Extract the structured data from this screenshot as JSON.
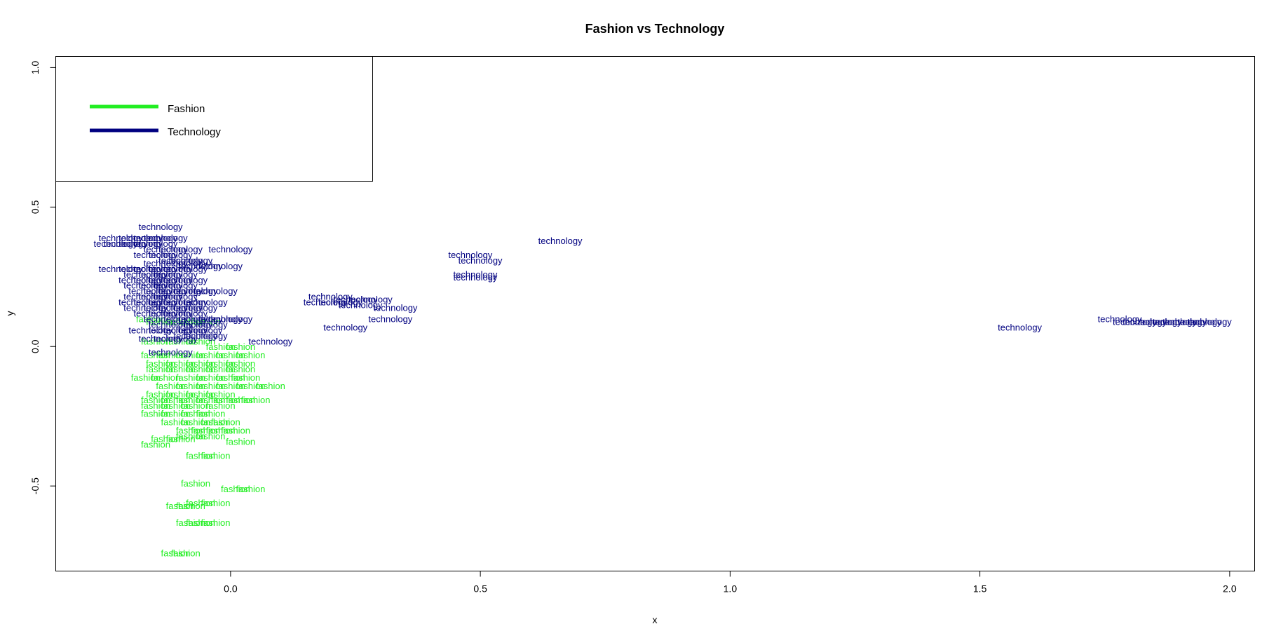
{
  "chart_data": {
    "type": "scatter",
    "title": "Fashion vs Technology",
    "xlabel": "x",
    "ylabel": "y",
    "xlim": [
      -0.35,
      2.05
    ],
    "ylim": [
      -0.805,
      1.04
    ],
    "x_ticks": [
      {
        "value": 0.0,
        "label": "0.0"
      },
      {
        "value": 0.5,
        "label": "0.5"
      },
      {
        "value": 1.0,
        "label": "1.0"
      },
      {
        "value": 1.5,
        "label": "1.5"
      },
      {
        "value": 2.0,
        "label": "2.0"
      }
    ],
    "y_ticks": [
      {
        "value": -0.5,
        "label": "-0.5"
      },
      {
        "value": 0.0,
        "label": "0.0"
      },
      {
        "value": 0.5,
        "label": "0.5"
      },
      {
        "value": 1.0,
        "label": "1.0"
      }
    ],
    "grid": false,
    "legend": {
      "position": "top-left",
      "entries": [
        {
          "label": "Fashion",
          "color": "#22ee22"
        },
        {
          "label": "Technology",
          "color": "#000080"
        }
      ]
    },
    "series": [
      {
        "name": "Fashion",
        "point_label": "fashion",
        "color": "#22ee22",
        "points": [
          [
            -0.16,
            0.1
          ],
          [
            -0.14,
            0.09
          ],
          [
            -0.1,
            0.09
          ],
          [
            -0.08,
            0.09
          ],
          [
            -0.05,
            0.09
          ],
          [
            -0.15,
            0.02
          ],
          [
            -0.1,
            0.02
          ],
          [
            -0.06,
            0.02
          ],
          [
            -0.02,
            0.0
          ],
          [
            0.02,
            0.0
          ],
          [
            -0.15,
            -0.03
          ],
          [
            -0.12,
            -0.03
          ],
          [
            -0.08,
            -0.03
          ],
          [
            -0.04,
            -0.03
          ],
          [
            0.0,
            -0.03
          ],
          [
            0.04,
            -0.03
          ],
          [
            -0.14,
            -0.06
          ],
          [
            -0.1,
            -0.06
          ],
          [
            -0.06,
            -0.06
          ],
          [
            -0.02,
            -0.06
          ],
          [
            0.02,
            -0.06
          ],
          [
            -0.14,
            -0.08
          ],
          [
            -0.1,
            -0.08
          ],
          [
            -0.06,
            -0.08
          ],
          [
            -0.02,
            -0.08
          ],
          [
            0.02,
            -0.08
          ],
          [
            -0.17,
            -0.11
          ],
          [
            -0.13,
            -0.11
          ],
          [
            -0.08,
            -0.11
          ],
          [
            -0.04,
            -0.11
          ],
          [
            0.0,
            -0.11
          ],
          [
            0.03,
            -0.11
          ],
          [
            -0.12,
            -0.14
          ],
          [
            -0.08,
            -0.14
          ],
          [
            -0.04,
            -0.14
          ],
          [
            0.0,
            -0.14
          ],
          [
            0.04,
            -0.14
          ],
          [
            0.08,
            -0.14
          ],
          [
            -0.14,
            -0.17
          ],
          [
            -0.1,
            -0.17
          ],
          [
            -0.06,
            -0.17
          ],
          [
            -0.02,
            -0.17
          ],
          [
            -0.15,
            -0.19
          ],
          [
            -0.11,
            -0.19
          ],
          [
            -0.08,
            -0.19
          ],
          [
            -0.04,
            -0.19
          ],
          [
            -0.01,
            -0.19
          ],
          [
            0.02,
            -0.19
          ],
          [
            0.05,
            -0.19
          ],
          [
            -0.15,
            -0.21
          ],
          [
            -0.11,
            -0.21
          ],
          [
            -0.07,
            -0.21
          ],
          [
            -0.02,
            -0.21
          ],
          [
            -0.15,
            -0.24
          ],
          [
            -0.11,
            -0.24
          ],
          [
            -0.07,
            -0.24
          ],
          [
            -0.04,
            -0.24
          ],
          [
            -0.11,
            -0.27
          ],
          [
            -0.07,
            -0.27
          ],
          [
            -0.03,
            -0.27
          ],
          [
            -0.01,
            -0.27
          ],
          [
            -0.08,
            -0.3
          ],
          [
            -0.05,
            -0.3
          ],
          [
            -0.02,
            -0.3
          ],
          [
            0.01,
            -0.3
          ],
          [
            -0.08,
            -0.32
          ],
          [
            -0.04,
            -0.32
          ],
          [
            -0.13,
            -0.33
          ],
          [
            -0.1,
            -0.33
          ],
          [
            -0.15,
            -0.35
          ],
          [
            0.02,
            -0.34
          ],
          [
            -0.06,
            -0.39
          ],
          [
            -0.03,
            -0.39
          ],
          [
            -0.07,
            -0.49
          ],
          [
            0.01,
            -0.51
          ],
          [
            0.04,
            -0.51
          ],
          [
            -0.06,
            -0.56
          ],
          [
            -0.03,
            -0.56
          ],
          [
            -0.08,
            -0.57
          ],
          [
            -0.1,
            -0.57
          ],
          [
            -0.08,
            -0.63
          ],
          [
            -0.06,
            -0.63
          ],
          [
            -0.03,
            -0.63
          ],
          [
            -0.11,
            -0.74
          ],
          [
            -0.09,
            -0.74
          ]
        ]
      },
      {
        "name": "Technology",
        "point_label": "technology",
        "color": "#000080",
        "points": [
          [
            -0.14,
            0.43
          ],
          [
            -0.22,
            0.39
          ],
          [
            -0.18,
            0.39
          ],
          [
            -0.15,
            0.39
          ],
          [
            -0.13,
            0.39
          ],
          [
            -0.23,
            0.37
          ],
          [
            -0.21,
            0.37
          ],
          [
            -0.18,
            0.37
          ],
          [
            -0.15,
            0.37
          ],
          [
            -0.13,
            0.35
          ],
          [
            -0.1,
            0.35
          ],
          [
            0.0,
            0.35
          ],
          [
            -0.15,
            0.33
          ],
          [
            -0.12,
            0.33
          ],
          [
            -0.1,
            0.31
          ],
          [
            -0.08,
            0.31
          ],
          [
            -0.13,
            0.3
          ],
          [
            -0.09,
            0.3
          ],
          [
            -0.06,
            0.29
          ],
          [
            -0.02,
            0.29
          ],
          [
            -0.22,
            0.28
          ],
          [
            -0.18,
            0.28
          ],
          [
            -0.15,
            0.28
          ],
          [
            -0.12,
            0.28
          ],
          [
            -0.09,
            0.28
          ],
          [
            -0.17,
            0.26
          ],
          [
            -0.14,
            0.26
          ],
          [
            -0.11,
            0.26
          ],
          [
            -0.18,
            0.24
          ],
          [
            -0.15,
            0.24
          ],
          [
            -0.12,
            0.24
          ],
          [
            -0.09,
            0.24
          ],
          [
            -0.17,
            0.22
          ],
          [
            -0.14,
            0.22
          ],
          [
            -0.11,
            0.22
          ],
          [
            -0.16,
            0.2
          ],
          [
            -0.13,
            0.2
          ],
          [
            -0.1,
            0.2
          ],
          [
            -0.07,
            0.2
          ],
          [
            -0.03,
            0.2
          ],
          [
            -0.17,
            0.18
          ],
          [
            -0.14,
            0.18
          ],
          [
            -0.11,
            0.18
          ],
          [
            -0.18,
            0.16
          ],
          [
            -0.15,
            0.16
          ],
          [
            -0.12,
            0.16
          ],
          [
            -0.09,
            0.16
          ],
          [
            -0.05,
            0.16
          ],
          [
            -0.17,
            0.14
          ],
          [
            -0.13,
            0.14
          ],
          [
            -0.1,
            0.14
          ],
          [
            -0.07,
            0.14
          ],
          [
            -0.15,
            0.12
          ],
          [
            -0.12,
            0.12
          ],
          [
            -0.09,
            0.12
          ],
          [
            -0.13,
            0.1
          ],
          [
            -0.09,
            0.1
          ],
          [
            -0.06,
            0.1
          ],
          [
            -0.02,
            0.1
          ],
          [
            0.0,
            0.1
          ],
          [
            -0.12,
            0.08
          ],
          [
            -0.08,
            0.08
          ],
          [
            -0.05,
            0.08
          ],
          [
            -0.16,
            0.06
          ],
          [
            -0.12,
            0.06
          ],
          [
            -0.09,
            0.06
          ],
          [
            -0.06,
            0.06
          ],
          [
            -0.14,
            0.03
          ],
          [
            -0.11,
            0.03
          ],
          [
            -0.07,
            0.04
          ],
          [
            -0.05,
            0.04
          ],
          [
            0.08,
            0.02
          ],
          [
            -0.12,
            -0.02
          ],
          [
            0.2,
            0.18
          ],
          [
            0.25,
            0.17
          ],
          [
            0.28,
            0.17
          ],
          [
            0.22,
            0.16
          ],
          [
            0.19,
            0.16
          ],
          [
            0.26,
            0.15
          ],
          [
            0.33,
            0.14
          ],
          [
            0.32,
            0.1
          ],
          [
            0.23,
            0.07
          ],
          [
            0.66,
            0.38
          ],
          [
            0.48,
            0.33
          ],
          [
            0.5,
            0.31
          ],
          [
            0.49,
            0.26
          ],
          [
            0.49,
            0.25
          ],
          [
            1.58,
            0.07
          ],
          [
            1.78,
            0.1
          ],
          [
            1.81,
            0.09
          ],
          [
            1.83,
            0.09
          ],
          [
            1.86,
            0.09
          ],
          [
            1.89,
            0.09
          ],
          [
            1.91,
            0.09
          ],
          [
            1.94,
            0.09
          ],
          [
            1.96,
            0.09
          ]
        ]
      }
    ]
  }
}
